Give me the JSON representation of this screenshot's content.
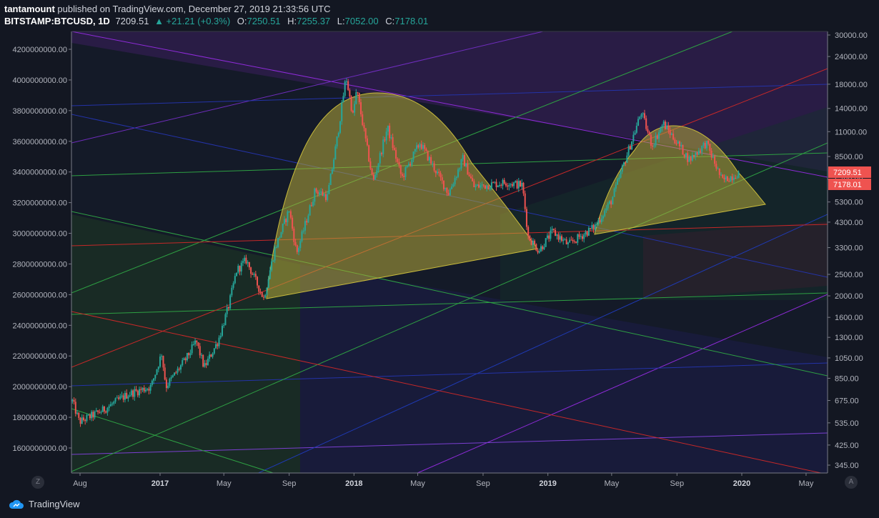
{
  "header": {
    "author": "tantamount",
    "published": "published on TradingView.com, December 27, 2019 21:33:56 UTC",
    "symbol": "BITSTAMP:BTCUSD, 1D",
    "price": "7209.51",
    "change": "▲ +21.21 (+0.3%)",
    "o_label": "O:",
    "o_value": "7250.51",
    "h_label": "H:",
    "h_value": "7255.37",
    "l_label": "L:",
    "l_value": "7052.00",
    "c_label": "C:",
    "c_value": "7178.01"
  },
  "footer": {
    "logo_text": "TradingView",
    "left_button": "Z",
    "right_button": "A"
  },
  "colors": {
    "background": "#131722",
    "up": "#26a69a",
    "down": "#ef5350",
    "shape_fill": "#b5a93a",
    "shape_stroke": "#c9bb3c",
    "price_badge": "#ef5350"
  },
  "chart_data": {
    "type": "candlestick",
    "symbol": "BITSTAMP:BTCUSD",
    "interval": "1D",
    "x_ticks": [
      "Aug",
      "2017",
      "May",
      "Sep",
      "2018",
      "May",
      "Sep",
      "2019",
      "May",
      "Sep",
      "2020",
      "May"
    ],
    "x_tick_dates": [
      "2016-08",
      "2017-01",
      "2017-05",
      "2017-09",
      "2018-01",
      "2018-05",
      "2018-09",
      "2019-01",
      "2019-05",
      "2019-09",
      "2020-01",
      "2020-05"
    ],
    "left_axis": {
      "ticks": [
        "4200000000.00",
        "4000000000.00",
        "3800000000.00",
        "3600000000.00",
        "3400000000.00",
        "3200000000.00",
        "3000000000.00",
        "2800000000.00",
        "2600000000.00",
        "2400000000.00",
        "2200000000.00",
        "2000000000.00",
        "1800000000.00",
        "1600000000.00"
      ]
    },
    "right_axis": {
      "scale": "log",
      "ticks": [
        "30000.00",
        "24000.00",
        "18000.00",
        "14000.00",
        "11000.00",
        "8500.00",
        "6700.00",
        "5300.00",
        "4300.00",
        "3300.00",
        "2500.00",
        "2000.00",
        "1600.00",
        "1300.00",
        "1050.00",
        "850.00",
        "675.00",
        "535.00",
        "425.00",
        "345.00"
      ],
      "badges": [
        "7209.51",
        "7178.01"
      ]
    },
    "price_path": [
      [
        "2016-07-20",
        670
      ],
      [
        "2016-08-02",
        540
      ],
      [
        "2016-09-15",
        610
      ],
      [
        "2016-11-01",
        720
      ],
      [
        "2016-12-15",
        780
      ],
      [
        "2017-01-04",
        1100
      ],
      [
        "2017-01-12",
        780
      ],
      [
        "2017-02-20",
        1050
      ],
      [
        "2017-03-10",
        1250
      ],
      [
        "2017-03-25",
        950
      ],
      [
        "2017-04-20",
        1250
      ],
      [
        "2017-05-10",
        1800
      ],
      [
        "2017-05-25",
        2600
      ],
      [
        "2017-06-12",
        2900
      ],
      [
        "2017-07-15",
        1950
      ],
      [
        "2017-08-05",
        3250
      ],
      [
        "2017-09-01",
        4900
      ],
      [
        "2017-09-15",
        3100
      ],
      [
        "2017-10-20",
        6000
      ],
      [
        "2017-11-12",
        5600
      ],
      [
        "2017-12-01",
        10500
      ],
      [
        "2017-12-17",
        19500
      ],
      [
        "2017-12-30",
        13000
      ],
      [
        "2018-01-06",
        17000
      ],
      [
        "2018-02-06",
        6500
      ],
      [
        "2018-03-05",
        11500
      ],
      [
        "2018-04-01",
        6800
      ],
      [
        "2018-05-05",
        9800
      ],
      [
        "2018-06-28",
        5800
      ],
      [
        "2018-07-25",
        8300
      ],
      [
        "2018-08-15",
        6200
      ],
      [
        "2018-10-15",
        6500
      ],
      [
        "2018-11-14",
        6300
      ],
      [
        "2018-11-25",
        3700
      ],
      [
        "2018-12-15",
        3200
      ],
      [
        "2019-01-10",
        3900
      ],
      [
        "2019-02-08",
        3400
      ],
      [
        "2019-03-30",
        4100
      ],
      [
        "2019-05-01",
        5400
      ],
      [
        "2019-06-26",
        13500
      ],
      [
        "2019-07-16",
        9500
      ],
      [
        "2019-08-06",
        12000
      ],
      [
        "2019-09-24",
        8200
      ],
      [
        "2019-10-26",
        9800
      ],
      [
        "2019-11-25",
        6600
      ],
      [
        "2019-12-27",
        7178
      ]
    ]
  }
}
